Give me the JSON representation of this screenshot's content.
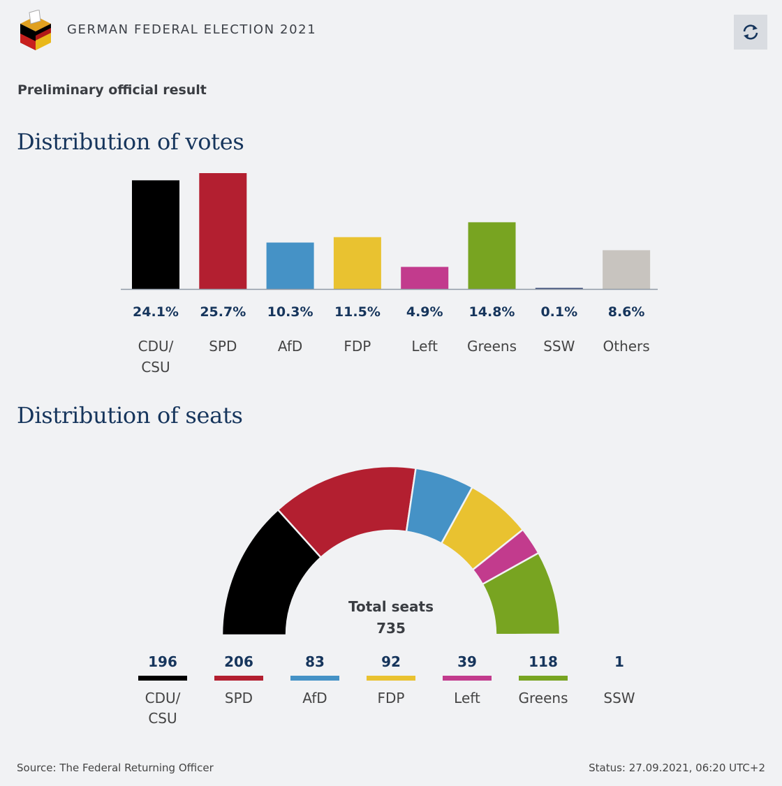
{
  "header": {
    "title": "GERMAN FEDERAL ELECTION 2021",
    "logo_icon": "ballot-box-icon",
    "refresh_icon": "refresh-icon"
  },
  "subtitle": "Preliminary official result",
  "votes_section": {
    "title": "Distribution of votes"
  },
  "seats_section": {
    "title": "Distribution of seats"
  },
  "chart_data": [
    {
      "type": "bar",
      "title": "Distribution of votes",
      "categories": [
        "CDU/\nCSU",
        "SPD",
        "AfD",
        "FDP",
        "Left",
        "Greens",
        "SSW",
        "Others"
      ],
      "values": [
        24.1,
        25.7,
        10.3,
        11.5,
        4.9,
        14.8,
        0.1,
        8.6
      ],
      "value_labels": [
        "24.1%",
        "25.7%",
        "10.3%",
        "11.5%",
        "4.9%",
        "14.8%",
        "0.1%",
        "8.6%"
      ],
      "colors": [
        "#000000",
        "#b31f30",
        "#4592c6",
        "#e9c230",
        "#c23b8d",
        "#78a421",
        "#2b3d6e",
        "#c8c4bf"
      ],
      "ylim": [
        0,
        25.7
      ]
    },
    {
      "type": "pie",
      "title": "Distribution of seats",
      "categories": [
        "CDU/\nCSU",
        "SPD",
        "AfD",
        "FDP",
        "Left",
        "Greens",
        "SSW"
      ],
      "values": [
        196,
        206,
        83,
        92,
        39,
        118,
        1
      ],
      "colors": [
        "#000000",
        "#b31f30",
        "#4592c6",
        "#e9c230",
        "#c23b8d",
        "#78a421",
        "#2b3d6e"
      ],
      "total_label": "Total seats",
      "total": 735
    }
  ],
  "footer": {
    "source": "Source: The Federal Returning Officer",
    "status": "Status: 27.09.2021, 06:20 UTC+2"
  }
}
